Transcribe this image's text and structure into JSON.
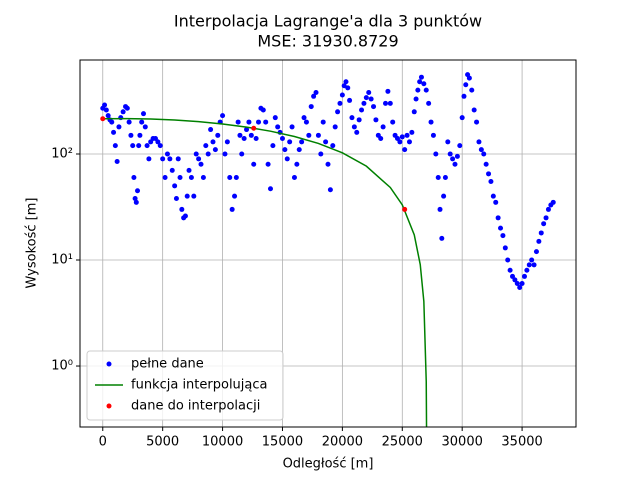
{
  "chart_data": {
    "type": "line",
    "title": "Interpolacja Lagrange'a dla 3 punktów",
    "subtitle": "MSE: 31930.8729",
    "x_label": "Odległość [m]",
    "y_label": "Wysokość [m]",
    "xlim": [
      -1900,
      39500
    ],
    "ylim": [
      0.266,
      770
    ],
    "xticks": [
      0,
      5000,
      10000,
      15000,
      20000,
      25000,
      30000,
      35000
    ],
    "yticks": [
      {
        "value": 1,
        "label": "10⁰"
      },
      {
        "value": 10,
        "label": "10¹"
      },
      {
        "value": 100,
        "label": "10²"
      }
    ],
    "y_scale": "log",
    "grid": true,
    "legend": "lower left",
    "series": [
      {
        "name": "pełne dane",
        "color": "#0000ff",
        "style": "points",
        "x": [
          0,
          150,
          300,
          450,
          600,
          750,
          900,
          1050,
          1200,
          1350,
          1500,
          1700,
          1900,
          2050,
          2200,
          2350,
          2500,
          2600,
          2700,
          2800,
          2900,
          3000,
          3100,
          3250,
          3400,
          3550,
          3700,
          3850,
          4000,
          4200,
          4400,
          4600,
          4800,
          5000,
          5200,
          5400,
          5600,
          5800,
          6000,
          6150,
          6300,
          6450,
          6600,
          6750,
          6900,
          7050,
          7200,
          7400,
          7600,
          7800,
          8000,
          8200,
          8400,
          8600,
          8800,
          9000,
          9200,
          9400,
          9600,
          9800,
          10000,
          10200,
          10400,
          10600,
          10800,
          11000,
          11150,
          11300,
          11450,
          11600,
          11800,
          12000,
          12200,
          12400,
          12600,
          12800,
          13000,
          13200,
          13400,
          13600,
          13800,
          14000,
          14200,
          14400,
          14600,
          14800,
          15000,
          15200,
          15400,
          15600,
          15800,
          16000,
          16200,
          16400,
          16600,
          16800,
          17000,
          17200,
          17400,
          17600,
          17800,
          18000,
          18200,
          18400,
          18600,
          18800,
          19000,
          19200,
          19400,
          19600,
          19800,
          20000,
          20150,
          20300,
          20450,
          20600,
          20800,
          21000,
          21200,
          21400,
          21600,
          21800,
          22000,
          22200,
          22400,
          22600,
          22800,
          23000,
          23200,
          23400,
          23600,
          23800,
          24000,
          24200,
          24400,
          24600,
          24800,
          25000,
          25200,
          25400,
          25600,
          25800,
          26000,
          26150,
          26300,
          26450,
          26600,
          26800,
          27000,
          27200,
          27400,
          27600,
          27800,
          28000,
          28150,
          28300,
          28450,
          28600,
          28800,
          29000,
          29200,
          29400,
          29600,
          29800,
          30000,
          30150,
          30300,
          30450,
          30600,
          30800,
          31000,
          31200,
          31400,
          31600,
          31800,
          32000,
          32200,
          32400,
          32600,
          32800,
          33000,
          33200,
          33400,
          33600,
          33800,
          34000,
          34200,
          34400,
          34600,
          34800,
          35000,
          35200,
          35400,
          35600,
          35800,
          36000,
          36200,
          36400,
          36600,
          36800,
          37000,
          37200,
          37400,
          37600
        ],
        "values": [
          270,
          290,
          260,
          230,
          210,
          200,
          160,
          120,
          85,
          180,
          220,
          250,
          280,
          270,
          200,
          150,
          120,
          60,
          38,
          35,
          45,
          120,
          150,
          200,
          240,
          180,
          120,
          90,
          130,
          140,
          140,
          130,
          120,
          90,
          60,
          100,
          90,
          70,
          50,
          38,
          90,
          60,
          30,
          25,
          26,
          40,
          70,
          60,
          40,
          100,
          90,
          80,
          60,
          120,
          100,
          170,
          130,
          110,
          150,
          200,
          230,
          100,
          130,
          60,
          30,
          40,
          60,
          200,
          150,
          100,
          140,
          170,
          200,
          150,
          80,
          140,
          200,
          270,
          260,
          200,
          80,
          47,
          120,
          220,
          180,
          160,
          140,
          110,
          90,
          130,
          180,
          60,
          80,
          110,
          130,
          220,
          200,
          150,
          280,
          350,
          380,
          150,
          100,
          200,
          130,
          80,
          46,
          120,
          180,
          250,
          300,
          360,
          440,
          480,
          420,
          320,
          220,
          180,
          160,
          210,
          260,
          300,
          340,
          380,
          330,
          280,
          210,
          150,
          140,
          180,
          300,
          390,
          300,
          200,
          150,
          140,
          130,
          145,
          110,
          150,
          130,
          160,
          250,
          330,
          400,
          480,
          530,
          460,
          400,
          300,
          200,
          150,
          100,
          60,
          30,
          16,
          40,
          60,
          130,
          100,
          90,
          80,
          95,
          120,
          220,
          350,
          450,
          560,
          520,
          400,
          260,
          200,
          130,
          110,
          100,
          80,
          65,
          55,
          40,
          35,
          25,
          20,
          17,
          13,
          10,
          8,
          7,
          6.5,
          6,
          5.5,
          6,
          7,
          8,
          9,
          10,
          9,
          12,
          15,
          18,
          22,
          25,
          30,
          33,
          35
        ]
      },
      {
        "name": "funkcja interpolująca",
        "color": "#008000",
        "style": "line",
        "x": [
          0,
          2000,
          4000,
          6000,
          8000,
          10000,
          12000,
          14000,
          16000,
          18000,
          20000,
          22000,
          24000,
          25000,
          26000,
          26500,
          26800,
          27000,
          27030
        ],
        "values": [
          215,
          215.66,
          213.68,
          209.05,
          201.78,
          191.85,
          179.28,
          164.08,
          146.21,
          125.72,
          102.56,
          76.78,
          48.33,
          33.12,
          17.25,
          9.06,
          4.07,
          0.715,
          0.208
        ]
      },
      {
        "name": "dane do interpolacji",
        "color": "#ff0000",
        "style": "points",
        "x": [
          0,
          12600,
          25200
        ],
        "values": [
          215,
          175,
          30
        ]
      }
    ]
  }
}
